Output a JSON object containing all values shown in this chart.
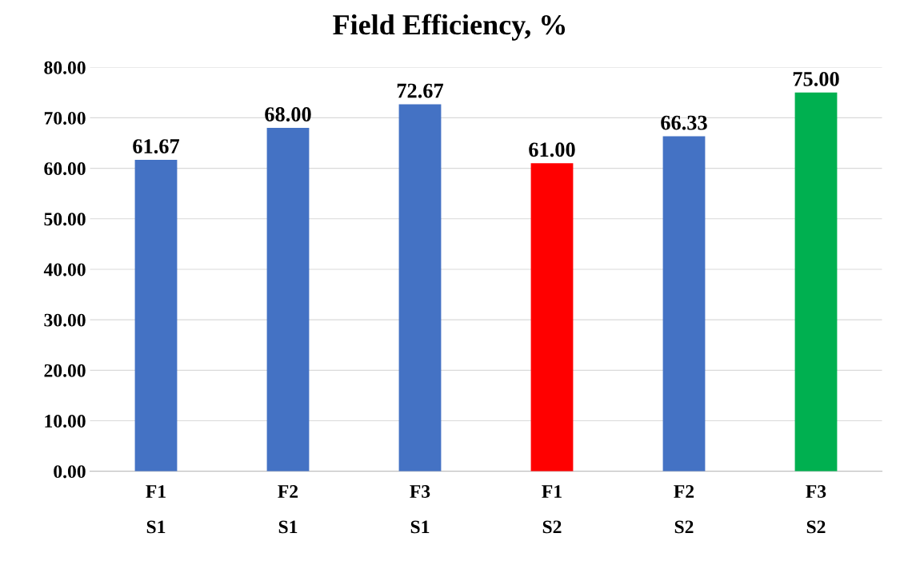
{
  "chart_data": {
    "type": "bar",
    "title": "Field Efficiency, %",
    "categories": [
      "F1\nS1",
      "F2\nS1",
      "F3\nS1",
      "F1\nS2",
      "F2\nS2",
      "F3\nS2"
    ],
    "values": [
      61.67,
      68.0,
      72.67,
      61.0,
      66.33,
      75.0
    ],
    "colors": [
      "#4472c4",
      "#4472c4",
      "#4472c4",
      "#ff0000",
      "#4472c4",
      "#00b050"
    ],
    "value_labels": [
      "61.67",
      "68.00",
      "72.67",
      "61.00",
      "66.33",
      "75.00"
    ],
    "ylim": [
      0,
      80
    ],
    "yticks": [
      {
        "value": 0,
        "label": "0.00"
      },
      {
        "value": 10,
        "label": "10.00"
      },
      {
        "value": 20,
        "label": "20.00"
      },
      {
        "value": 30,
        "label": "30.00"
      },
      {
        "value": 40,
        "label": "40.00"
      },
      {
        "value": 50,
        "label": "50.00"
      },
      {
        "value": 60,
        "label": "60.00"
      },
      {
        "value": 70,
        "label": "70.00"
      },
      {
        "value": 80,
        "label": "80.00"
      }
    ],
    "grid": "y",
    "legend": false
  }
}
